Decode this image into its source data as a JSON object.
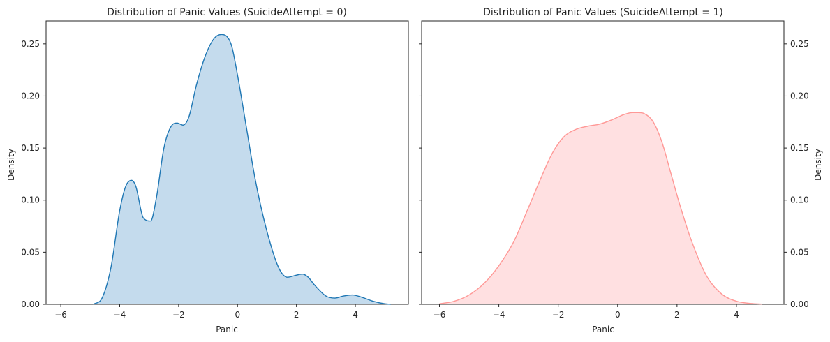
{
  "chart_data": [
    {
      "type": "area",
      "title": "Distribution of Panic Values (SuicideAttempt = 0)",
      "xlabel": "Panic",
      "ylabel": "Density",
      "xlim": [
        -6.5,
        5.8
      ],
      "ylim": [
        0,
        0.272
      ],
      "x_ticks": [
        -6,
        -4,
        -2,
        0,
        2,
        4
      ],
      "y_ticks": [
        0.0,
        0.05,
        0.1,
        0.15,
        0.2,
        0.25
      ],
      "y_tick_labels": [
        "0.00",
        "0.05",
        "0.10",
        "0.15",
        "0.20",
        "0.25"
      ],
      "y_axis_side": "left",
      "grid": false,
      "line_color": "#1f77b4",
      "fill_color": "#c4dbed",
      "series": [
        {
          "x": [
            -4.9,
            -4.6,
            -4.3,
            -4.0,
            -3.8,
            -3.6,
            -3.45,
            -3.2,
            -2.95,
            -2.75,
            -2.5,
            -2.25,
            -2.05,
            -1.85,
            -1.65,
            -1.4,
            -1.1,
            -0.8,
            -0.55,
            -0.4,
            -0.2,
            0.0,
            0.3,
            0.6,
            1.0,
            1.4,
            1.7,
            2.0,
            2.2,
            2.4,
            2.6,
            3.0,
            3.3,
            3.6,
            3.9,
            4.2,
            4.6,
            5.0,
            5.2
          ],
          "y": [
            0.0,
            0.006,
            0.035,
            0.09,
            0.113,
            0.119,
            0.113,
            0.083,
            0.08,
            0.103,
            0.15,
            0.171,
            0.174,
            0.172,
            0.18,
            0.21,
            0.238,
            0.255,
            0.259,
            0.258,
            0.248,
            0.22,
            0.17,
            0.12,
            0.07,
            0.035,
            0.026,
            0.028,
            0.029,
            0.026,
            0.019,
            0.008,
            0.006,
            0.008,
            0.009,
            0.007,
            0.003,
            0.0005,
            0.0
          ]
        }
      ]
    },
    {
      "type": "area",
      "title": "Distribution of Panic Values (SuicideAttempt = 1)",
      "xlabel": "Panic",
      "ylabel": "Density",
      "xlim": [
        -6.6,
        5.6
      ],
      "ylim": [
        0,
        0.272
      ],
      "x_ticks": [
        -6,
        -4,
        -2,
        0,
        2,
        4
      ],
      "y_ticks": [
        0.0,
        0.05,
        0.1,
        0.15,
        0.2,
        0.25
      ],
      "y_tick_labels": [
        "0.00",
        "0.05",
        "0.10",
        "0.15",
        "0.20",
        "0.25"
      ],
      "y_axis_side": "right",
      "grid": false,
      "line_color": "#ff9896",
      "fill_color": "#ffe0e1",
      "series": [
        {
          "x": [
            -6.0,
            -5.5,
            -5.0,
            -4.5,
            -4.0,
            -3.5,
            -3.0,
            -2.6,
            -2.2,
            -1.8,
            -1.4,
            -1.0,
            -0.6,
            -0.2,
            0.2,
            0.5,
            0.7,
            0.9,
            1.2,
            1.5,
            1.8,
            2.1,
            2.5,
            3.0,
            3.5,
            4.0,
            4.5,
            4.85
          ],
          "y": [
            0.0005,
            0.003,
            0.009,
            0.02,
            0.037,
            0.06,
            0.093,
            0.12,
            0.145,
            0.161,
            0.168,
            0.171,
            0.173,
            0.177,
            0.182,
            0.184,
            0.184,
            0.183,
            0.175,
            0.155,
            0.125,
            0.095,
            0.06,
            0.027,
            0.01,
            0.003,
            0.0008,
            0.0002
          ]
        }
      ]
    }
  ]
}
